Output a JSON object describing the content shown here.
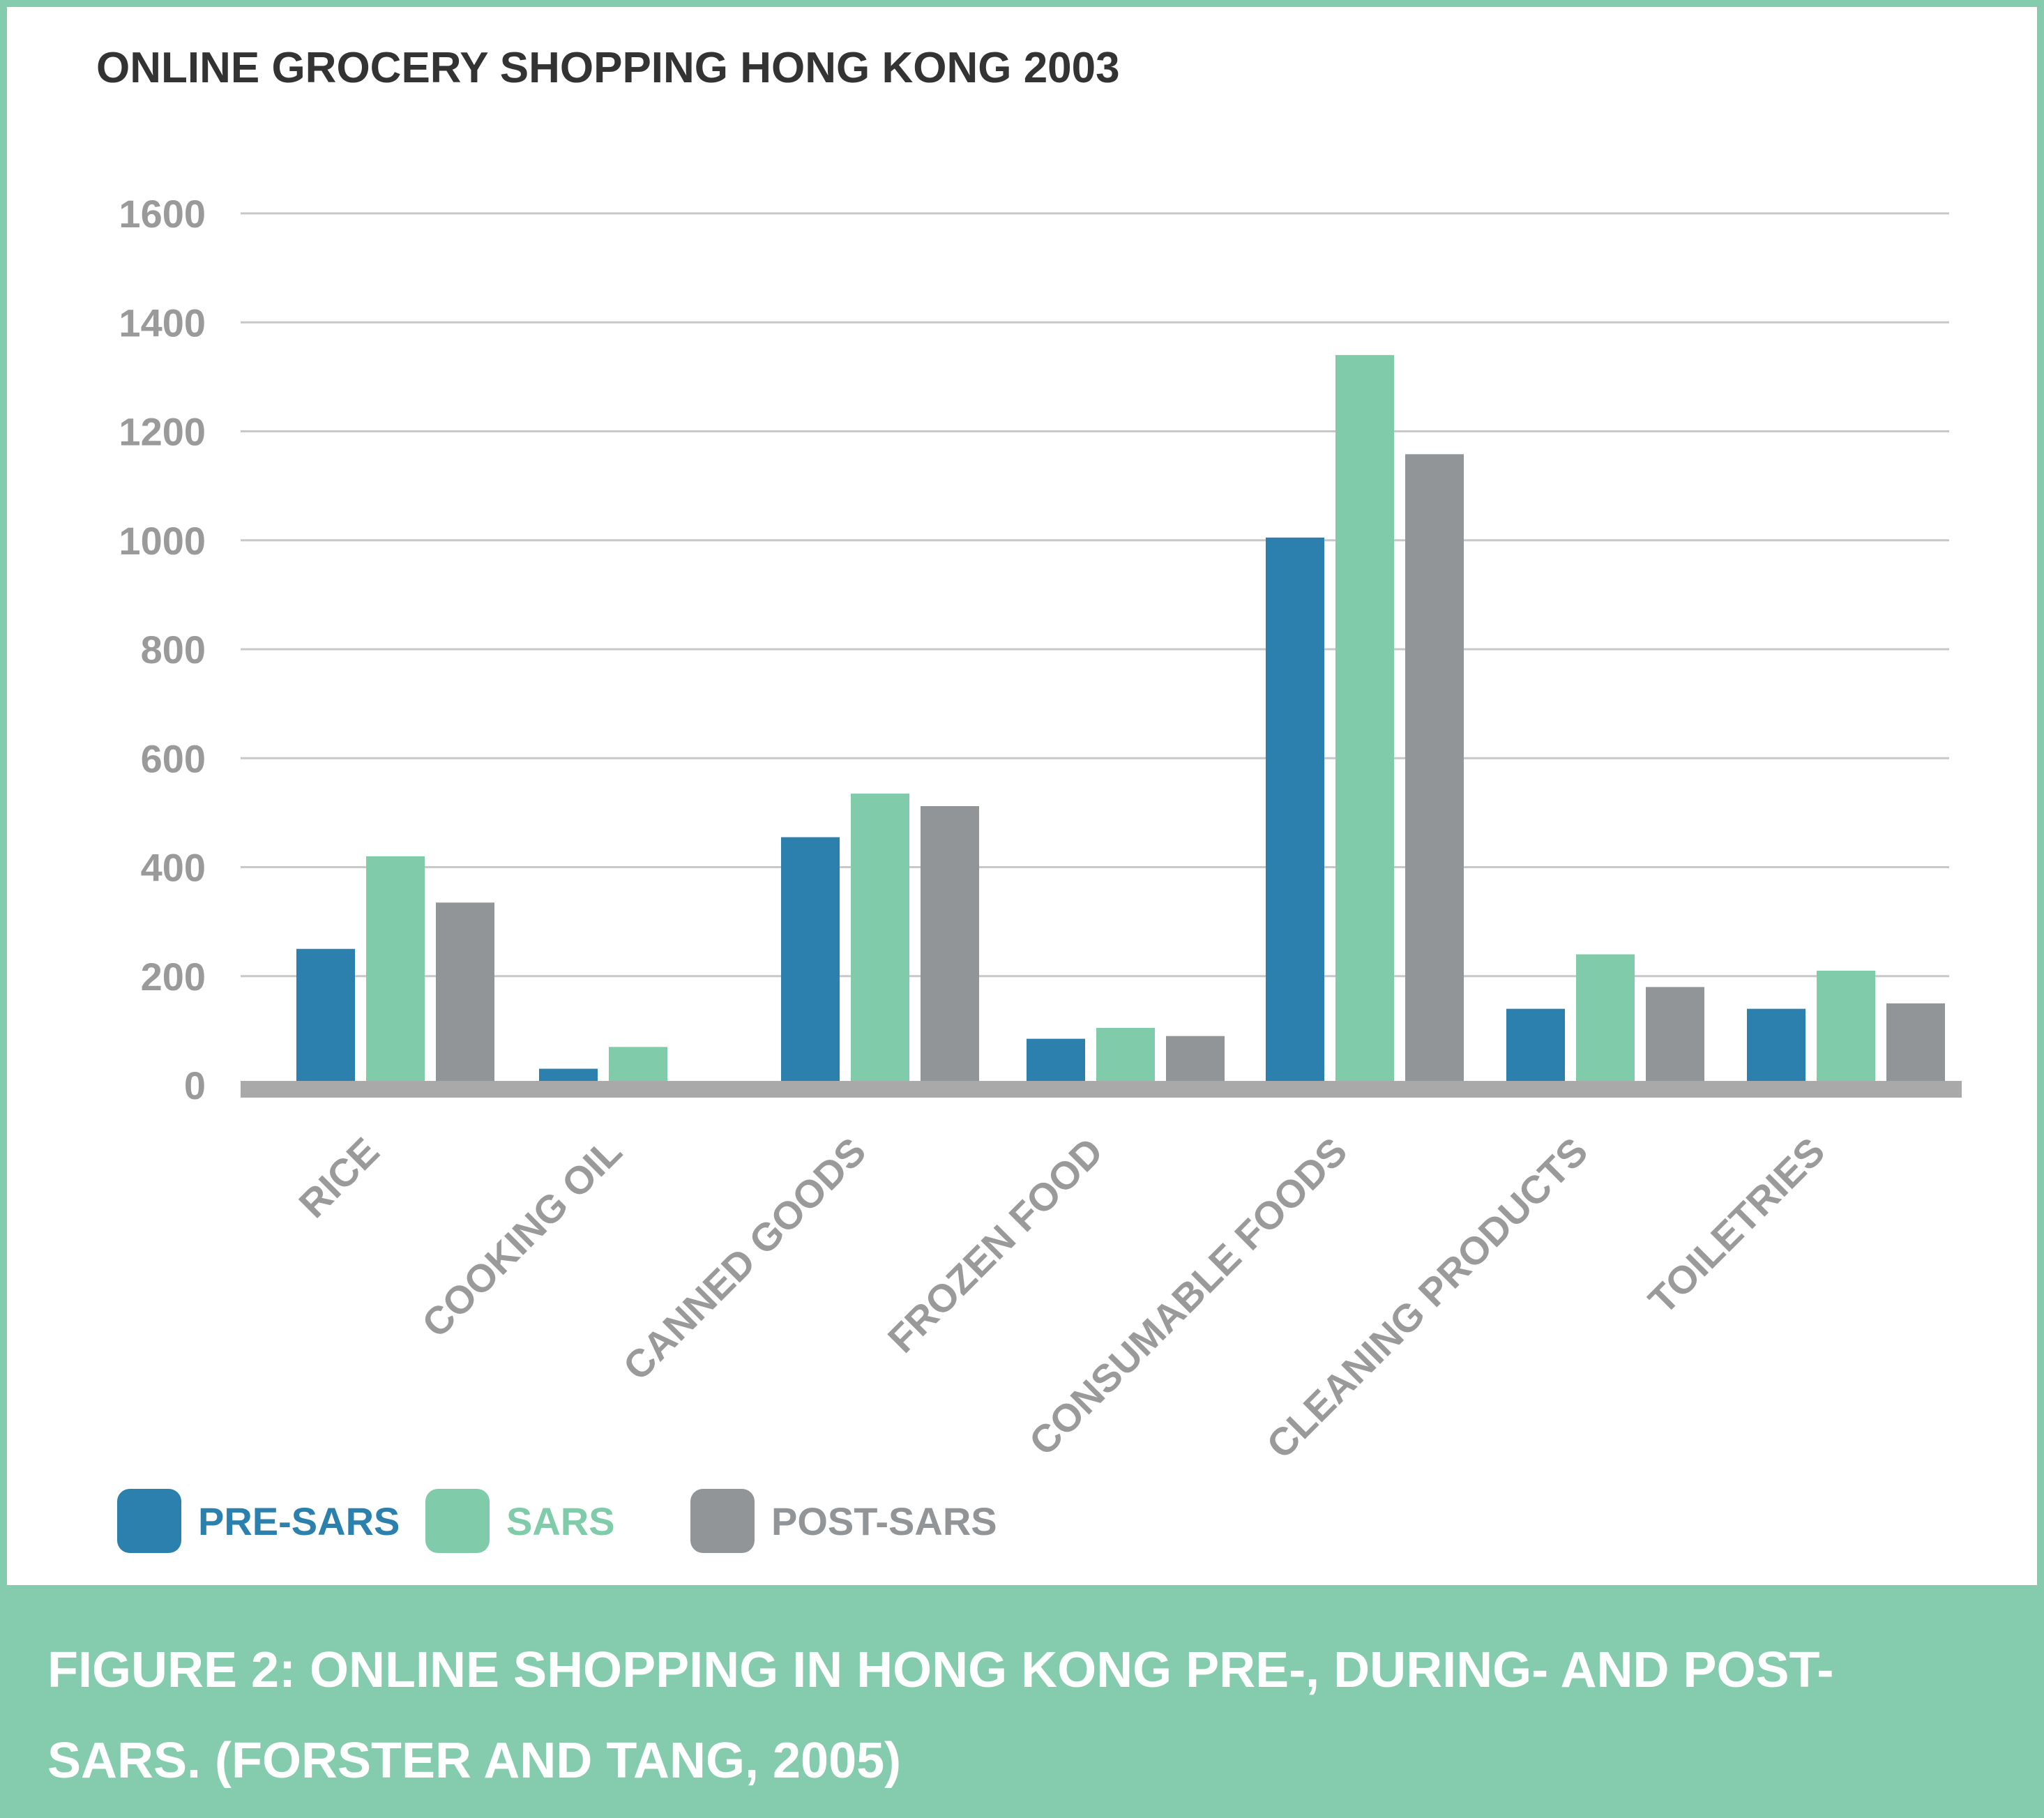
{
  "chart_data": {
    "type": "bar",
    "title": "ONLINE GROCERY SHOPPING HONG KONG 2003",
    "categories": [
      "RICE",
      "COOKING OIL",
      "CANNED GOODS",
      "FROZEN FOOD",
      "CONSUMABLE FOODS",
      "CLEANING PRODUCTS",
      "TOILETRIES"
    ],
    "series": [
      {
        "name": "PRE-SARS",
        "color": "#2b80ad",
        "values": [
          250,
          30,
          455,
          85,
          1005,
          140,
          140
        ]
      },
      {
        "name": "SARS",
        "color": "#80cbaa",
        "values": [
          420,
          70,
          535,
          105,
          1340,
          240,
          210
        ]
      },
      {
        "name": "POST-SARS",
        "color": "#929598",
        "values": [
          335,
          0,
          512,
          90,
          1158,
          180,
          150
        ]
      }
    ],
    "yticks": [
      0,
      200,
      400,
      600,
      800,
      1000,
      1200,
      1400,
      1600
    ],
    "ylim": [
      0,
      1600
    ],
    "xlabel": "",
    "ylabel": "",
    "grid": true,
    "legend": "bottom-left"
  },
  "caption": {
    "line1": "FIGURE 2: ONLINE SHOPPING IN HONG KONG PRE-, DURING- AND POST-",
    "line2": "SARS. (FORSTER AND TANG, 2005)"
  },
  "colors": {
    "frame": "#85cbad",
    "caption_band": "#85cbad",
    "grid": "#c8c8c8",
    "axis": "#a9a9a9",
    "tick_text": "#9a9a9a",
    "title_text": "#333333"
  }
}
